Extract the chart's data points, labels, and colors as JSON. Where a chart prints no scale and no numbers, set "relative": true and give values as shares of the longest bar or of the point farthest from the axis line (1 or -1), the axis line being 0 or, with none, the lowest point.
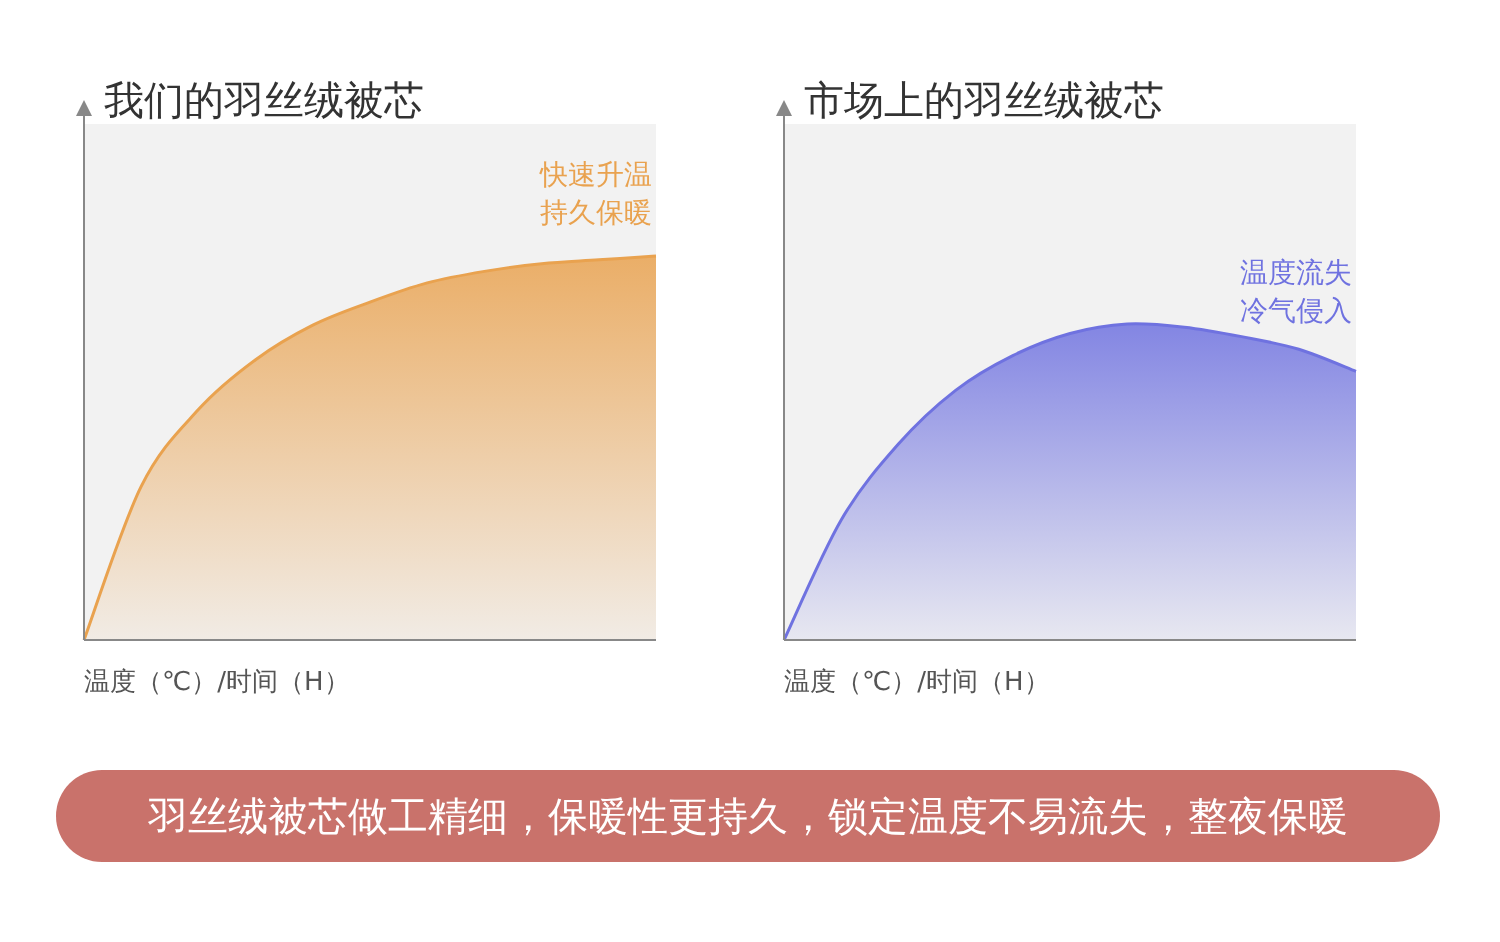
{
  "chart_data": [
    {
      "type": "area",
      "title": "我们的羽丝绒被芯",
      "xlabel": "温度（℃）/时间（H）",
      "relative": true,
      "categories": [
        null,
        null,
        null,
        null,
        null,
        null,
        null,
        null,
        null,
        null,
        null
      ],
      "series": [
        {
          "color": "#e9a24f",
          "values": [
            0,
            0.4,
            0.6,
            0.73,
            0.82,
            0.88,
            0.93,
            0.96,
            0.98,
            0.99,
            1
          ]
        }
      ],
      "annotations": [
        "快速升温持久保暖"
      ]
    },
    {
      "type": "area",
      "title": "市场上的羽丝绒被芯",
      "xlabel": "温度（℃）/时间（H）",
      "relative": true,
      "categories": [
        null,
        null,
        null,
        null,
        null,
        null,
        null,
        null,
        null,
        null,
        null
      ],
      "series": [
        {
          "color": "#6f72e0",
          "values": [
            0,
            0.38,
            0.62,
            0.79,
            0.9,
            0.97,
            1,
            0.99,
            0.96,
            0.92,
            0.85
          ]
        }
      ],
      "annotations": [
        "温度流失冷气侵入"
      ]
    },
    {
      "type": "other",
      "annotations": [
        "羽丝绒被芯做工精细，保暖性更持久，锁定温度不易流失，整夜保暖"
      ]
    }
  ]
}
